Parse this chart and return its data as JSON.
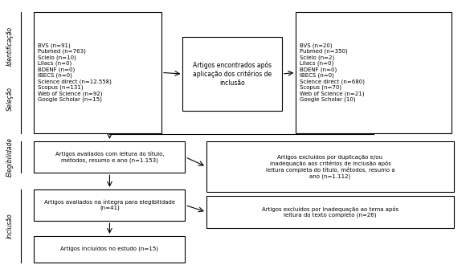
{
  "bg_color": "#ffffff",
  "box_color": "#ffffff",
  "box_edge_color": "#000000",
  "text_color": "#000000",
  "arrow_color": "#000000",
  "box1_text": "BVS (n=91)\nPubmed (n=763)\nScielo (n=10)\nLilacs (n=0)\nBDENF (n=0)\nIBECS (n=0)\nScience direct (n=12.558)\nScopus (n=131)\nWeb of Science (n=92)\nGoogle Scholar (n=15)",
  "box2_text": "Artigos encontrados após\naplicação dos critérios de\ninclusão",
  "box3_text": "BVS (n=20)\nPubmed (n=350)\nScielo (n=2)\nLilacs (n=0)\nBDENF (n=0)\nIBECS (n=0)\nScience direct (n=680)\nScopus (n=70)\nWeb of Science (n=21)\nGoogle Scholar (10)",
  "box4_text": "Artigos avaliados com leitura do título,\nmétodos, resumo e ano (n=1.153)",
  "box5_text": "Artigos excluídos por duplicação e/ou\ninadequação aos critérios de inclusão após\nleitura completa do título, métodos, resumo a\nano (n=1.112)",
  "box6_text": "Artigos avaliados na íntegra para elegibilidade\n(n=41)",
  "box7_text": "Artigos excluídos por inadequação ao tema após\nleitura do texto completo (n=26)",
  "box8_text": "Artigos incluídos no estudo (n=15)",
  "label_identificacao": "Identificação",
  "label_selecao": "Seleção",
  "label_elegibilidade": "Elegibilidade",
  "label_inclusao": "Inclusão"
}
